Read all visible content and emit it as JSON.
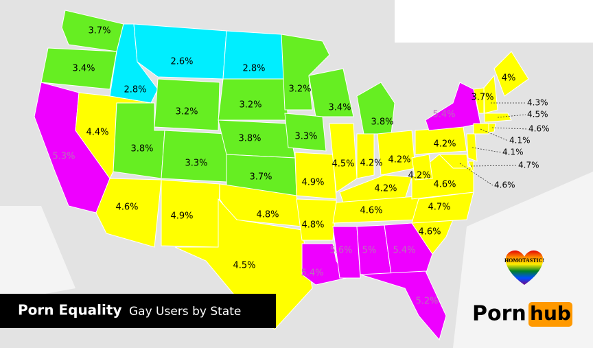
{
  "title": "Porn Equality",
  "subtitle": "Gay Users by State",
  "badge": "HOMOTASTIC!",
  "brand": {
    "left": "Porn",
    "right": "hub",
    "accent": "#ff9900"
  },
  "states": [
    {
      "label": "3.7%",
      "color": "#66ee22"
    },
    {
      "label": "3.4%",
      "color": "#66ee22"
    },
    {
      "label": "2.8%",
      "color": "#00eeff"
    },
    {
      "label": "2.6%",
      "color": "#00eeff"
    },
    {
      "label": "2.8%",
      "color": "#00eeff"
    },
    {
      "label": "5.3%",
      "color": "#ee00ff"
    },
    {
      "label": "4.4%",
      "color": "#ffff00"
    },
    {
      "label": "3.2%",
      "color": "#66ee22"
    },
    {
      "label": "3.2%",
      "color": "#66ee22"
    },
    {
      "label": "3.2%",
      "color": "#66ee22"
    },
    {
      "label": "3.4%",
      "color": "#66ee22"
    },
    {
      "label": "3.8%",
      "color": "#66ee22"
    },
    {
      "label": "3.8%",
      "color": "#66ee22"
    },
    {
      "label": "3.3%",
      "color": "#66ee22"
    },
    {
      "label": "3.8%",
      "color": "#66ee22"
    },
    {
      "label": "3.3%",
      "color": "#66ee22"
    },
    {
      "label": "3.7%",
      "color": "#66ee22"
    },
    {
      "label": "4.6%",
      "color": "#ffff00"
    },
    {
      "label": "4.9%",
      "color": "#ffff00"
    },
    {
      "label": "4.8%",
      "color": "#ffff00"
    },
    {
      "label": "4.5%",
      "color": "#ffff00"
    },
    {
      "label": "4.9%",
      "color": "#ffff00"
    },
    {
      "label": "4.8%",
      "color": "#ffff00"
    },
    {
      "label": "5.4%",
      "color": "#ee00ff"
    },
    {
      "label": "4.5%",
      "color": "#ffff00"
    },
    {
      "label": "4.2%",
      "color": "#ffff00"
    },
    {
      "label": "4.2%",
      "color": "#ffff00"
    },
    {
      "label": "4.2%",
      "color": "#ffff00"
    },
    {
      "label": "4.6%",
      "color": "#ffff00"
    },
    {
      "label": "5.6%",
      "color": "#ee00ff"
    },
    {
      "label": "5%",
      "color": "#ee00ff"
    },
    {
      "label": "5.4%",
      "color": "#ee00ff"
    },
    {
      "label": "5.2%",
      "color": "#ee00ff"
    },
    {
      "label": "4.6%",
      "color": "#ffff00"
    },
    {
      "label": "4.7%",
      "color": "#ffff00"
    },
    {
      "label": "4.6%",
      "color": "#ffff00"
    },
    {
      "label": "4.2%",
      "color": "#ffff00"
    },
    {
      "label": "4.2%",
      "color": "#ffff00"
    },
    {
      "label": "5.4%",
      "color": "#ee00ff"
    },
    {
      "label": "4%",
      "color": "#ffff00"
    },
    {
      "label": "3.7%",
      "color": "#ffff00"
    },
    {
      "label": "4.3%",
      "color": "#ffff00"
    },
    {
      "label": "4.5%",
      "color": "#ffff00"
    },
    {
      "label": "4.6%",
      "color": "#ffff00"
    },
    {
      "label": "4.1%",
      "color": "#ffff00"
    },
    {
      "label": "4.1%",
      "color": "#ffff00"
    },
    {
      "label": "4.7%",
      "color": "#ffff00"
    },
    {
      "label": "4.6%",
      "color": "#ffff00"
    }
  ]
}
